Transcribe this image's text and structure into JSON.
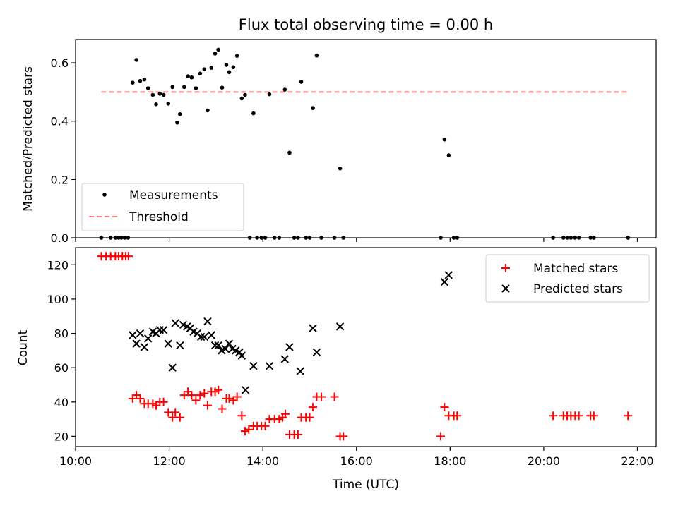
{
  "title": "Flux total observing time = 0.00 h",
  "colors": {
    "measure": "#000000",
    "threshold": "#ff7f7f",
    "matched": "#ff0000",
    "predicted": "#000000"
  },
  "chart_data": [
    {
      "type": "scatter",
      "ylabel": "Matched/Predicted stars",
      "xlim": [
        10.0,
        22.4
      ],
      "ylim": [
        0.0,
        0.68
      ],
      "yticks": [
        "0.0",
        "0.2",
        "0.4",
        "0.6"
      ],
      "yticks_values": [
        0.0,
        0.2,
        0.4,
        0.6
      ],
      "legend_position": "lower-left",
      "series": [
        {
          "name": "Measurements",
          "marker": "dot",
          "points": [
            [
              10.55,
              0
            ],
            [
              10.75,
              0
            ],
            [
              10.85,
              0
            ],
            [
              10.92,
              0
            ],
            [
              10.98,
              0
            ],
            [
              11.05,
              0
            ],
            [
              11.12,
              0
            ],
            [
              11.22,
              0.532
            ],
            [
              11.3,
              0.61
            ],
            [
              11.38,
              0.538
            ],
            [
              11.47,
              0.543
            ],
            [
              11.55,
              0.513
            ],
            [
              11.65,
              0.49
            ],
            [
              11.72,
              0.458
            ],
            [
              11.8,
              0.494
            ],
            [
              11.88,
              0.49
            ],
            [
              11.98,
              0.46
            ],
            [
              12.07,
              0.517
            ],
            [
              12.17,
              0.395
            ],
            [
              12.23,
              0.424
            ],
            [
              12.32,
              0.517
            ],
            [
              12.4,
              0.554
            ],
            [
              12.48,
              0.55
            ],
            [
              12.57,
              0.513
            ],
            [
              12.66,
              0.563
            ],
            [
              12.75,
              0.578
            ],
            [
              12.82,
              0.437
            ],
            [
              12.9,
              0.583
            ],
            [
              12.98,
              0.632
            ],
            [
              13.05,
              0.645
            ],
            [
              13.13,
              0.515
            ],
            [
              13.22,
              0.593
            ],
            [
              13.28,
              0.568
            ],
            [
              13.37,
              0.585
            ],
            [
              13.45,
              0.624
            ],
            [
              13.55,
              0.478
            ],
            [
              13.62,
              0.49
            ],
            [
              13.72,
              0
            ],
            [
              13.8,
              0.427
            ],
            [
              13.88,
              0
            ],
            [
              13.97,
              0
            ],
            [
              14.05,
              0
            ],
            [
              14.14,
              0.492
            ],
            [
              14.25,
              0
            ],
            [
              14.35,
              0
            ],
            [
              14.47,
              0.508
            ],
            [
              14.57,
              0.292
            ],
            [
              14.67,
              0
            ],
            [
              14.75,
              0
            ],
            [
              14.82,
              0.535
            ],
            [
              14.92,
              0
            ],
            [
              15.0,
              0
            ],
            [
              15.07,
              0.445
            ],
            [
              15.15,
              0.625
            ],
            [
              15.25,
              0
            ],
            [
              15.53,
              0
            ],
            [
              15.65,
              0.238
            ],
            [
              15.72,
              0
            ],
            [
              17.8,
              0
            ],
            [
              17.88,
              0.337
            ],
            [
              17.97,
              0.283
            ],
            [
              18.08,
              0
            ],
            [
              18.15,
              0
            ],
            [
              20.2,
              0
            ],
            [
              20.42,
              0
            ],
            [
              20.5,
              0
            ],
            [
              20.58,
              0
            ],
            [
              20.67,
              0
            ],
            [
              20.75,
              0
            ],
            [
              21.0,
              0
            ],
            [
              21.07,
              0
            ],
            [
              21.8,
              0
            ]
          ]
        },
        {
          "name": "Threshold",
          "marker": "dashed-line",
          "points": [
            [
              10.55,
              0.5
            ],
            [
              21.8,
              0.5
            ]
          ]
        }
      ]
    },
    {
      "type": "scatter",
      "xlabel": "Time (UTC)",
      "ylabel": "Count",
      "xlim": [
        10.0,
        22.4
      ],
      "ylim": [
        14,
        130
      ],
      "xticks": [
        "10:00",
        "12:00",
        "14:00",
        "16:00",
        "18:00",
        "20:00",
        "22:00"
      ],
      "xticks_values": [
        10,
        12,
        14,
        16,
        18,
        20,
        22
      ],
      "yticks": [
        "20",
        "40",
        "60",
        "80",
        "100",
        "120"
      ],
      "yticks_values": [
        20,
        40,
        60,
        80,
        100,
        120
      ],
      "legend_position": "upper-right",
      "series": [
        {
          "name": "Matched stars",
          "marker": "plus",
          "points": [
            [
              10.55,
              125
            ],
            [
              10.65,
              125
            ],
            [
              10.75,
              125
            ],
            [
              10.85,
              125
            ],
            [
              10.92,
              125
            ],
            [
              11.0,
              125
            ],
            [
              11.07,
              125
            ],
            [
              11.13,
              125
            ],
            [
              11.22,
              42
            ],
            [
              11.3,
              44
            ],
            [
              11.38,
              42
            ],
            [
              11.47,
              39
            ],
            [
              11.55,
              39
            ],
            [
              11.65,
              39
            ],
            [
              11.72,
              38
            ],
            [
              11.8,
              40
            ],
            [
              11.88,
              40
            ],
            [
              11.98,
              34
            ],
            [
              12.07,
              31
            ],
            [
              12.13,
              34
            ],
            [
              12.23,
              31
            ],
            [
              12.32,
              44
            ],
            [
              12.4,
              46
            ],
            [
              12.48,
              44
            ],
            [
              12.57,
              41
            ],
            [
              12.66,
              44
            ],
            [
              12.75,
              45
            ],
            [
              12.82,
              38
            ],
            [
              12.9,
              46
            ],
            [
              12.98,
              46
            ],
            [
              13.05,
              47
            ],
            [
              13.13,
              36
            ],
            [
              13.22,
              42
            ],
            [
              13.28,
              42
            ],
            [
              13.37,
              41
            ],
            [
              13.45,
              43
            ],
            [
              13.55,
              32
            ],
            [
              13.62,
              23
            ],
            [
              13.7,
              24
            ],
            [
              13.8,
              26
            ],
            [
              13.88,
              26
            ],
            [
              13.97,
              26
            ],
            [
              14.05,
              26
            ],
            [
              14.14,
              30
            ],
            [
              14.25,
              30
            ],
            [
              14.35,
              30
            ],
            [
              14.42,
              31
            ],
            [
              14.48,
              33
            ],
            [
              14.57,
              21
            ],
            [
              14.67,
              21
            ],
            [
              14.75,
              21
            ],
            [
              14.82,
              31
            ],
            [
              14.92,
              31
            ],
            [
              15.0,
              31
            ],
            [
              15.07,
              37
            ],
            [
              15.15,
              43
            ],
            [
              15.25,
              43
            ],
            [
              15.53,
              43
            ],
            [
              15.65,
              20
            ],
            [
              15.72,
              20
            ],
            [
              17.8,
              20
            ],
            [
              17.88,
              37
            ],
            [
              17.97,
              32
            ],
            [
              18.08,
              32
            ],
            [
              18.15,
              32
            ],
            [
              20.2,
              32
            ],
            [
              20.42,
              32
            ],
            [
              20.5,
              32
            ],
            [
              20.58,
              32
            ],
            [
              20.67,
              32
            ],
            [
              20.75,
              32
            ],
            [
              21.0,
              32
            ],
            [
              21.07,
              32
            ],
            [
              21.8,
              32
            ]
          ]
        },
        {
          "name": "Predicted stars",
          "marker": "x",
          "points": [
            [
              11.22,
              79
            ],
            [
              11.3,
              74
            ],
            [
              11.38,
              80
            ],
            [
              11.47,
              72
            ],
            [
              11.55,
              77
            ],
            [
              11.65,
              81
            ],
            [
              11.72,
              80
            ],
            [
              11.8,
              82
            ],
            [
              11.88,
              82
            ],
            [
              11.98,
              74
            ],
            [
              12.07,
              60
            ],
            [
              12.13,
              86
            ],
            [
              12.23,
              73
            ],
            [
              12.3,
              85
            ],
            [
              12.38,
              84
            ],
            [
              12.45,
              83
            ],
            [
              12.52,
              81
            ],
            [
              12.6,
              80
            ],
            [
              12.68,
              78
            ],
            [
              12.75,
              78
            ],
            [
              12.82,
              87
            ],
            [
              12.9,
              79
            ],
            [
              12.98,
              73
            ],
            [
              13.05,
              73
            ],
            [
              13.12,
              70
            ],
            [
              13.2,
              71
            ],
            [
              13.28,
              74
            ],
            [
              13.35,
              71
            ],
            [
              13.42,
              70
            ],
            [
              13.5,
              69
            ],
            [
              13.55,
              67
            ],
            [
              13.63,
              47
            ],
            [
              13.8,
              61
            ],
            [
              14.14,
              61
            ],
            [
              14.47,
              65
            ],
            [
              14.57,
              72
            ],
            [
              14.8,
              58
            ],
            [
              15.07,
              83
            ],
            [
              15.15,
              69
            ],
            [
              15.65,
              84
            ],
            [
              17.88,
              110
            ],
            [
              17.97,
              114
            ]
          ]
        }
      ]
    }
  ]
}
